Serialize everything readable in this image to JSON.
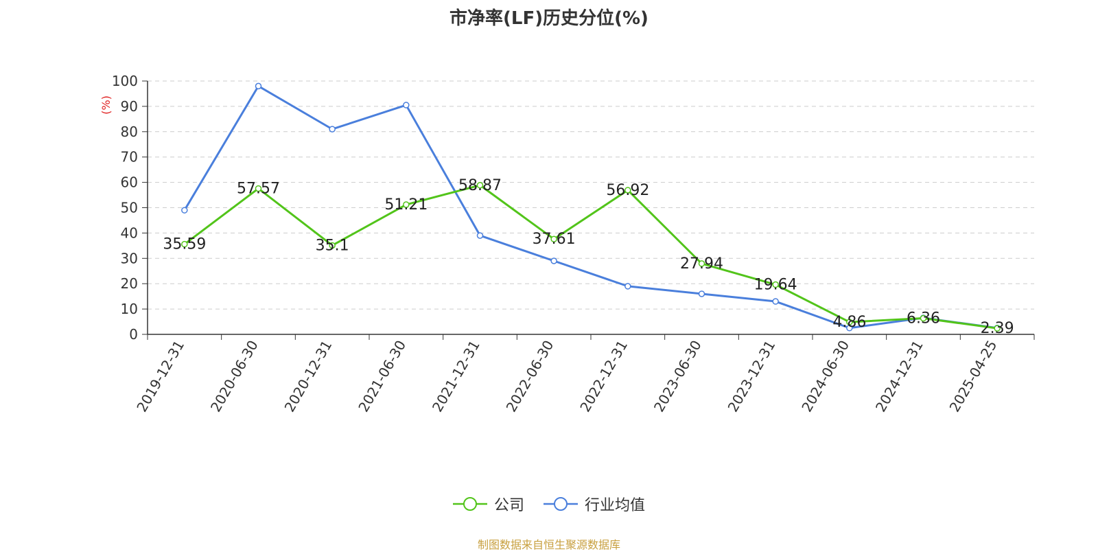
{
  "chart_data": {
    "type": "line",
    "title": "市净率(LF)历史分位(%)",
    "ylabel": "(%)",
    "ylim": [
      0,
      100
    ],
    "yticks": [
      0,
      10,
      20,
      30,
      40,
      50,
      60,
      70,
      80,
      90,
      100
    ],
    "grid": true,
    "legend_position": "bottom",
    "categories": [
      "2019-12-31",
      "2020-06-30",
      "2020-12-31",
      "2021-06-30",
      "2021-12-31",
      "2022-06-30",
      "2022-12-31",
      "2023-06-30",
      "2023-12-31",
      "2024-06-30",
      "2024-12-31",
      "2025-04-25"
    ],
    "series": [
      {
        "name": "公司",
        "color": "#52c41a",
        "labels": true,
        "values": [
          35.59,
          57.57,
          35.1,
          51.21,
          58.87,
          37.61,
          56.92,
          27.94,
          19.64,
          4.86,
          6.36,
          2.39
        ]
      },
      {
        "name": "行业均值",
        "color": "#4a7fdc",
        "labels": false,
        "values": [
          49,
          98,
          81,
          90.5,
          39,
          29,
          19,
          16,
          13,
          2.5,
          6.5,
          2.5
        ]
      }
    ]
  },
  "source": "制图数据来自恒生聚源数据库",
  "source_color": "#c8a040",
  "ylabel_color": "#e02020"
}
